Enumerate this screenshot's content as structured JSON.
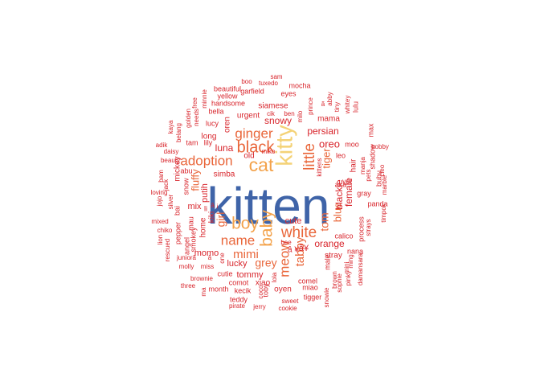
{
  "colors": {
    "blue": "#3f64a8",
    "gold": "#f4d277",
    "orange": "#f3a24a",
    "orange_red": "#e9663a",
    "red": "#d8252c"
  },
  "words": [
    {
      "text": "kitten",
      "color": "blue"
    },
    {
      "text": "kitty",
      "color": "gold"
    },
    {
      "text": "cat",
      "color": "orange"
    },
    {
      "text": "boy",
      "color": "orange"
    },
    {
      "text": "baby",
      "color": "orange"
    },
    {
      "text": "black",
      "color": "orange_red"
    },
    {
      "text": "white",
      "color": "orange_red"
    },
    {
      "text": "little",
      "color": "orange_red"
    },
    {
      "text": "adoption",
      "color": "orange_red"
    },
    {
      "text": "ginger",
      "color": "orange_red"
    },
    {
      "text": "name",
      "color": "orange_red"
    },
    {
      "text": "meow",
      "color": "orange_red"
    },
    {
      "text": "mimi",
      "color": "orange_red"
    },
    {
      "text": "tabby",
      "color": "orange_red"
    },
    {
      "text": "grey",
      "color": "orange_red"
    },
    {
      "text": "tom",
      "color": "orange_red"
    },
    {
      "text": "girl",
      "color": "orange_red"
    },
    {
      "text": "blue",
      "color": "orange_red"
    },
    {
      "text": "fluffy",
      "color": "orange_red"
    },
    {
      "text": "tiger",
      "color": "orange_red"
    },
    {
      "text": "oreo",
      "color": "red"
    },
    {
      "text": "persian",
      "color": "red"
    },
    {
      "text": "snowy",
      "color": "red"
    },
    {
      "text": "luna",
      "color": "red"
    },
    {
      "text": "orange",
      "color": "red"
    },
    {
      "text": "female",
      "color": "red"
    },
    {
      "text": "blackie",
      "color": "red"
    },
    {
      "text": "cute",
      "color": "red"
    },
    {
      "text": "putih",
      "color": "red"
    },
    {
      "text": "lucky",
      "color": "red"
    },
    {
      "text": "momo",
      "color": "red"
    },
    {
      "text": "tommy",
      "color": "red"
    },
    {
      "text": "mix",
      "color": "red"
    },
    {
      "text": "stray",
      "color": "red"
    },
    {
      "text": "simba",
      "color": "red"
    },
    {
      "text": "urgent",
      "color": "red"
    },
    {
      "text": "siamese",
      "color": "red"
    },
    {
      "text": "long",
      "color": "red"
    },
    {
      "text": "kiki",
      "color": "red"
    },
    {
      "text": "home",
      "color": "red"
    },
    {
      "text": "hair",
      "color": "red"
    },
    {
      "text": "mama",
      "color": "red"
    },
    {
      "text": "lulu",
      "color": "red"
    },
    {
      "text": "oyen",
      "color": "red"
    },
    {
      "text": "xiao",
      "color": "red"
    },
    {
      "text": "comot",
      "color": "red"
    },
    {
      "text": "cutie",
      "color": "red"
    },
    {
      "text": "mickey",
      "color": "red"
    },
    {
      "text": "snow",
      "color": "red"
    },
    {
      "text": "old",
      "color": "red"
    },
    {
      "text": "oren",
      "color": "red"
    },
    {
      "text": "lucy",
      "color": "red"
    },
    {
      "text": "tam",
      "color": "red"
    },
    {
      "text": "lily",
      "color": "red"
    },
    {
      "text": "abu",
      "color": "red"
    },
    {
      "text": "mau",
      "color": "red"
    },
    {
      "text": "angel",
      "color": "red"
    },
    {
      "text": "smokey",
      "color": "red"
    },
    {
      "text": "pepper",
      "color": "red"
    },
    {
      "text": "bai",
      "color": "red"
    },
    {
      "text": "li",
      "color": "red"
    },
    {
      "text": "month",
      "color": "red"
    },
    {
      "text": "kecik",
      "color": "red"
    },
    {
      "text": "teddy",
      "color": "red"
    },
    {
      "text": "toby",
      "color": "red"
    },
    {
      "text": "coco",
      "color": "red"
    },
    {
      "text": "comel",
      "color": "red"
    },
    {
      "text": "miao",
      "color": "red"
    },
    {
      "text": "lola",
      "color": "red"
    },
    {
      "text": "bee",
      "color": "red"
    },
    {
      "text": "tigger",
      "color": "red"
    },
    {
      "text": "snowie",
      "color": "red"
    },
    {
      "text": "brown",
      "color": "red"
    },
    {
      "text": "male",
      "color": "red"
    },
    {
      "text": "sophie",
      "color": "red"
    },
    {
      "text": "mini",
      "color": "red"
    },
    {
      "text": "ming",
      "color": "red"
    },
    {
      "text": "pinky",
      "color": "red"
    },
    {
      "text": "nana",
      "color": "red"
    },
    {
      "text": "calico",
      "color": "red"
    },
    {
      "text": "process",
      "color": "red"
    },
    {
      "text": "strays",
      "color": "red"
    },
    {
      "text": "damansara",
      "color": "red"
    },
    {
      "text": "panda",
      "color": "red"
    },
    {
      "text": "gray",
      "color": "red"
    },
    {
      "text": "bubu",
      "color": "red"
    },
    {
      "text": "cleo",
      "color": "red"
    },
    {
      "text": "marble",
      "color": "red"
    },
    {
      "text": "timpok",
      "color": "red"
    },
    {
      "text": "shadow",
      "color": "red"
    },
    {
      "text": "max",
      "color": "red"
    },
    {
      "text": "bobby",
      "color": "red"
    },
    {
      "text": "pets",
      "color": "red"
    },
    {
      "text": "manja",
      "color": "red"
    },
    {
      "text": "moo",
      "color": "red"
    },
    {
      "text": "leo",
      "color": "red"
    },
    {
      "text": "aka",
      "color": "red"
    },
    {
      "text": "yet",
      "color": "red"
    },
    {
      "text": "kittens",
      "color": "red"
    },
    {
      "text": "ben",
      "color": "red"
    },
    {
      "text": "cik",
      "color": "red"
    },
    {
      "text": "miko",
      "color": "red"
    },
    {
      "text": "milo",
      "color": "red"
    },
    {
      "text": "prince",
      "color": "red"
    },
    {
      "text": "tiny",
      "color": "red"
    },
    {
      "text": "abby",
      "color": "red"
    },
    {
      "text": "whitey",
      "color": "red"
    },
    {
      "text": "eyes",
      "color": "red"
    },
    {
      "text": "mocha",
      "color": "red"
    },
    {
      "text": "tuxedo",
      "color": "red"
    },
    {
      "text": "sam",
      "color": "red"
    },
    {
      "text": "boo",
      "color": "red"
    },
    {
      "text": "garfield",
      "color": "red"
    },
    {
      "text": "beautiful",
      "color": "red"
    },
    {
      "text": "yellow",
      "color": "red"
    },
    {
      "text": "handsome",
      "color": "red"
    },
    {
      "text": "bella",
      "color": "red"
    },
    {
      "text": "minnie",
      "color": "red"
    },
    {
      "text": "free",
      "color": "red"
    },
    {
      "text": "needs",
      "color": "red"
    },
    {
      "text": "golden",
      "color": "red"
    },
    {
      "text": "belang",
      "color": "red"
    },
    {
      "text": "kaya",
      "color": "red"
    },
    {
      "text": "adik",
      "color": "red"
    },
    {
      "text": "daisy",
      "color": "red"
    },
    {
      "text": "beauty",
      "color": "red"
    },
    {
      "text": "bam",
      "color": "red"
    },
    {
      "text": "jack",
      "color": "red"
    },
    {
      "text": "loving",
      "color": "red"
    },
    {
      "text": "silver",
      "color": "red"
    },
    {
      "text": "jojo",
      "color": "red"
    },
    {
      "text": "mixed",
      "color": "red"
    },
    {
      "text": "chiko",
      "color": "red"
    },
    {
      "text": "lion",
      "color": "red"
    },
    {
      "text": "rescued",
      "color": "red"
    },
    {
      "text": "juniorâ",
      "color": "red"
    },
    {
      "text": "molly",
      "color": "red"
    },
    {
      "text": "miss",
      "color": "red"
    },
    {
      "text": "brownie",
      "color": "red"
    },
    {
      "text": "three",
      "color": "red"
    },
    {
      "text": "ma",
      "color": "red"
    },
    {
      "text": "pirate",
      "color": "red"
    },
    {
      "text": "jerry",
      "color": "red"
    },
    {
      "text": "sweet",
      "color": "red"
    },
    {
      "text": "cookie",
      "color": "red"
    },
    {
      "text": "one",
      "color": "red"
    },
    {
      "text": "â",
      "color": "red"
    },
    {
      "text": "ã¥",
      "color": "red"
    },
    {
      "text": "â ¥",
      "color": "red"
    },
    {
      "text": "ã",
      "color": "red"
    },
    {
      "text": "â ¡",
      "color": "red"
    }
  ]
}
